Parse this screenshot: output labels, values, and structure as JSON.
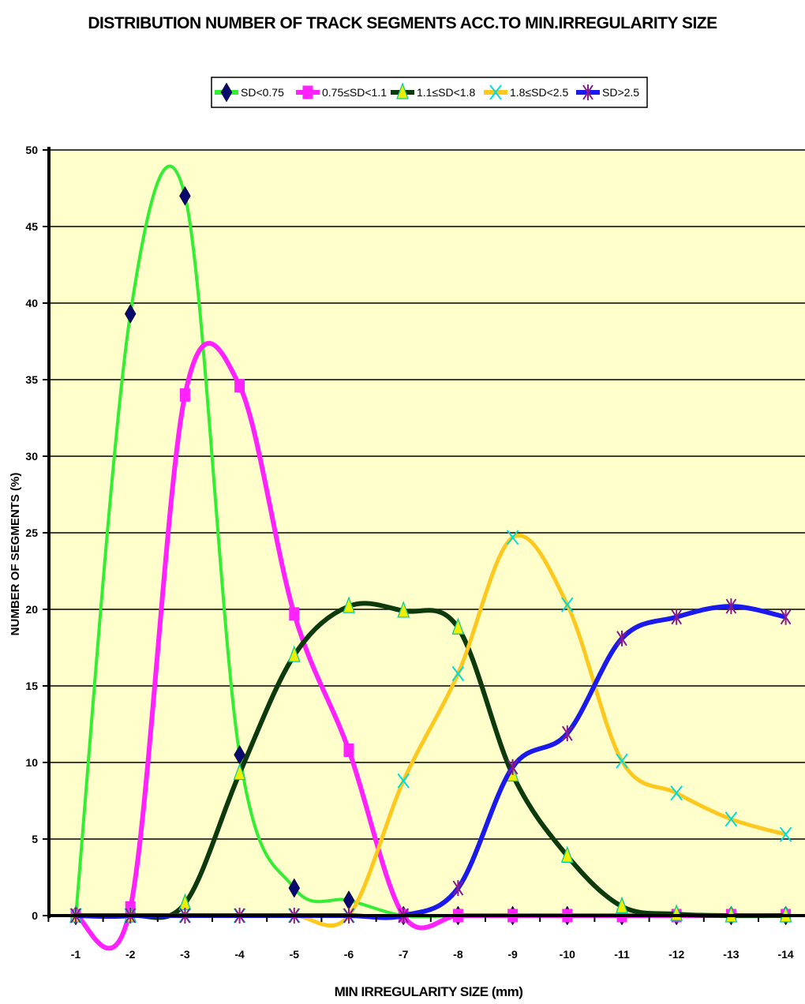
{
  "chart_data": {
    "type": "line",
    "title": "DISTRIBUTION NUMBER OF TRACK SEGMENTS ACC.TO MIN.IRREGULARITY SIZE",
    "xlabel": "MIN IRREGULARITY SIZE (mm)",
    "ylabel": "NUMBER OF SEGMENTS (%)",
    "categories": [
      "-1",
      "-2",
      "-3",
      "-4",
      "-5",
      "-6",
      "-7",
      "-8",
      "-9",
      "-10",
      "-11",
      "-12",
      "-13",
      "-14"
    ],
    "yticks": [
      "0",
      "5",
      "10",
      "15",
      "20",
      "25",
      "30",
      "35",
      "40",
      "45",
      "50"
    ],
    "ylim": [
      0,
      50
    ],
    "grid": true,
    "legend_position": "top",
    "series": [
      {
        "name": "SD<0.75",
        "color": "#33ee33",
        "marker": "diamond",
        "marker_color": "#0a0a6e",
        "values": [
          0,
          39.3,
          47,
          10.5,
          1.8,
          1.0,
          0,
          0,
          0,
          0,
          0,
          0,
          0,
          0
        ]
      },
      {
        "name": "0.75≤SD<1.1",
        "color": "#ff22ff",
        "marker": "square",
        "marker_color": "#ff22ff",
        "values": [
          0,
          0.5,
          34,
          34.6,
          19.7,
          10.8,
          0,
          0,
          0,
          0,
          0,
          0,
          0,
          0
        ]
      },
      {
        "name": "1.1≤SD<1.8",
        "color": "#0d3a0d",
        "marker": "triangle",
        "marker_color": "#eeee00",
        "values": [
          0,
          0,
          0.8,
          9.3,
          17,
          20.2,
          19.9,
          18.8,
          9.2,
          3.9,
          0.6,
          0.1,
          0,
          0
        ]
      },
      {
        "name": "1.8≤SD<2.5",
        "color": "#ffc81e",
        "marker": "x",
        "marker_color": "#00dddd",
        "values": [
          0,
          0,
          0,
          0,
          0,
          0,
          8.8,
          15.8,
          24.7,
          20.3,
          10.1,
          8.0,
          6.3,
          5.3
        ]
      },
      {
        "name": "SD>2.5",
        "color": "#1a1aee",
        "marker": "star",
        "marker_color": "#8a1a8a",
        "values": [
          0,
          0,
          0,
          0,
          0,
          0,
          0,
          1.8,
          9.7,
          11.9,
          18.1,
          19.5,
          20.2,
          19.5
        ]
      }
    ]
  }
}
